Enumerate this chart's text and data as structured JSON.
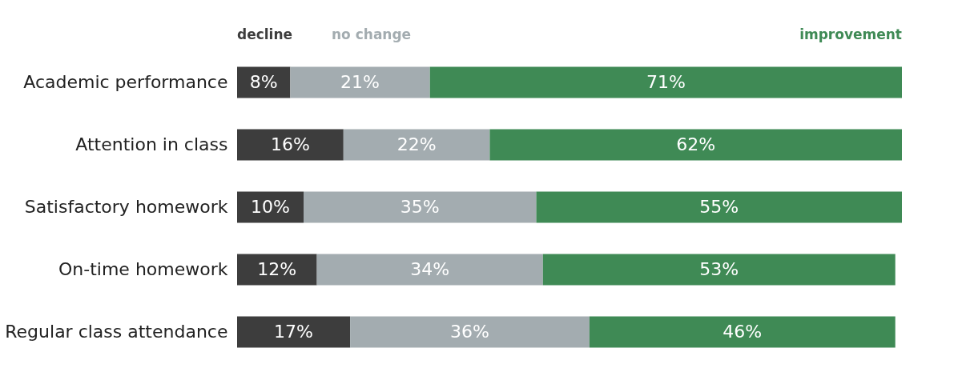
{
  "chart_data": {
    "type": "bar",
    "orientation": "horizontal",
    "stacked": true,
    "legend": "top",
    "grid": false,
    "categories": [
      "Academic performance",
      "Attention in class",
      "Satisfactory homework",
      "On-time homework",
      "Regular class attendance"
    ],
    "series": [
      {
        "name": "decline",
        "color": "#3d3d3d",
        "values": [
          8,
          16,
          10,
          12,
          17
        ],
        "value_labels": [
          "8%",
          "16%",
          "10%",
          "12%",
          "17%"
        ]
      },
      {
        "name": "no change",
        "color": "#a3acb0",
        "values": [
          21,
          22,
          35,
          34,
          36
        ],
        "value_labels": [
          "21%",
          "22%",
          "35%",
          "34%",
          "36%"
        ]
      },
      {
        "name": "improvement",
        "color": "#3f8a55",
        "values": [
          71,
          62,
          55,
          53,
          46
        ],
        "value_labels": [
          "71%",
          "62%",
          "55%",
          "53%",
          "46%"
        ]
      }
    ]
  }
}
